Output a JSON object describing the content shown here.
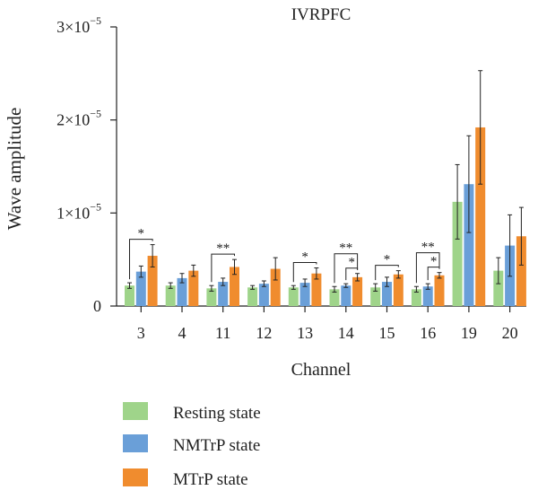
{
  "chart_data": {
    "type": "bar",
    "title": "IVRPFC",
    "xlabel": "Channel",
    "ylabel": "Wave amplitude",
    "ylim": [
      0,
      3e-05
    ],
    "yticks": [
      {
        "value": 0,
        "base": "0",
        "exp": ""
      },
      {
        "value": 1e-05,
        "base": "1×10",
        "exp": "−5"
      },
      {
        "value": 2e-05,
        "base": "2×10",
        "exp": "−5"
      },
      {
        "value": 3e-05,
        "base": "3×10",
        "exp": "−5"
      }
    ],
    "categories": [
      "3",
      "4",
      "11",
      "12",
      "13",
      "14",
      "15",
      "16",
      "19",
      "20"
    ],
    "series": [
      {
        "name": "Resting state",
        "color": "#9fd48a",
        "values": [
          2.2e-06,
          2.2e-06,
          1.9e-06,
          2e-06,
          2e-06,
          1.8e-06,
          2e-06,
          1.8e-06,
          1.12e-05,
          3.8e-06
        ],
        "errors": [
          3e-07,
          3e-07,
          3e-07,
          2e-07,
          2e-07,
          3e-07,
          4e-07,
          3e-07,
          4e-06,
          1.4e-06
        ]
      },
      {
        "name": "NMTrP state",
        "color": "#6a9fd8",
        "values": [
          3.7e-06,
          3e-06,
          2.6e-06,
          2.4e-06,
          2.5e-06,
          2.2e-06,
          2.6e-06,
          2.1e-06,
          1.31e-05,
          6.5e-06
        ],
        "errors": [
          6e-07,
          5e-07,
          4e-07,
          3e-07,
          4e-07,
          2e-07,
          5e-07,
          3e-07,
          5.2e-06,
          3.3e-06
        ]
      },
      {
        "name": "MTrP state",
        "color": "#f08c2e",
        "values": [
          5.4e-06,
          3.8e-06,
          4.2e-06,
          4e-06,
          3.5e-06,
          3.1e-06,
          3.4e-06,
          3.3e-06,
          1.92e-05,
          7.5e-06
        ],
        "errors": [
          1.2e-06,
          6e-07,
          8e-07,
          1.2e-06,
          6e-07,
          4e-07,
          4e-07,
          3e-07,
          6.1e-06,
          3.1e-06
        ]
      }
    ],
    "significance": [
      {
        "category": "3",
        "from": "Resting state",
        "to": "MTrP state",
        "label": "*"
      },
      {
        "category": "11",
        "from": "Resting state",
        "to": "MTrP state",
        "label": "**"
      },
      {
        "category": "13",
        "from": "Resting state",
        "to": "MTrP state",
        "label": "*"
      },
      {
        "category": "14",
        "from": "Resting state",
        "to": "MTrP state",
        "label": "**"
      },
      {
        "category": "14",
        "from": "NMTrP state",
        "to": "MTrP state",
        "label": "*"
      },
      {
        "category": "15",
        "from": "Resting state",
        "to": "MTrP state",
        "label": "*"
      },
      {
        "category": "16",
        "from": "Resting state",
        "to": "MTrP state",
        "label": "**"
      },
      {
        "category": "16",
        "from": "NMTrP state",
        "to": "MTrP state",
        "label": "*"
      }
    ],
    "legend": {
      "placement": "bottom"
    },
    "grid": false
  }
}
